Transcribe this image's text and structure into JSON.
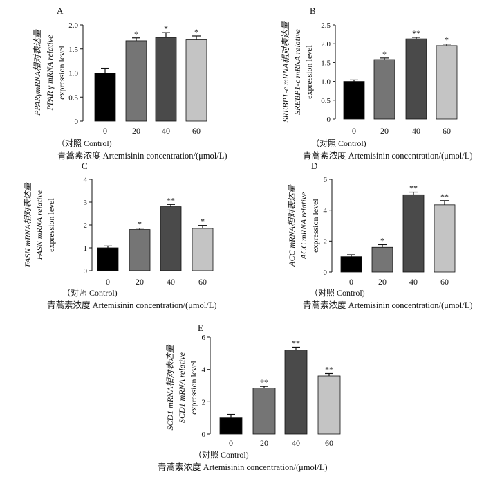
{
  "chart_data": [
    {
      "type": "bar",
      "panel_letter": "A",
      "categories": [
        "0",
        "20",
        "40",
        "60"
      ],
      "control_label": "（对照 Control)",
      "values": [
        1.0,
        1.67,
        1.74,
        1.69
      ],
      "errors": [
        0.1,
        0.06,
        0.1,
        0.08
      ],
      "significance": [
        "",
        "*",
        "*",
        "*"
      ],
      "ylim": [
        0,
        2.0
      ],
      "yticks": [
        "0",
        "0.5",
        "1.0",
        "1.5",
        "2.0"
      ],
      "ylabel_lines": [
        "PPARγmRNA相对表达量",
        "PPAR γ mRNA relative",
        "expression level"
      ],
      "xlabel": "青蒿素浓度 Artemisinin concentration/(μmol/L)",
      "colors": [
        "#000000",
        "#757575",
        "#4a4a4a",
        "#c4c4c4"
      ]
    },
    {
      "type": "bar",
      "panel_letter": "B",
      "categories": [
        "0",
        "20",
        "40",
        "60"
      ],
      "control_label": "（对照 Control)",
      "values": [
        1.0,
        1.58,
        2.13,
        1.95
      ],
      "errors": [
        0.04,
        0.04,
        0.04,
        0.04
      ],
      "significance": [
        "",
        "*",
        "**",
        "*"
      ],
      "ylim": [
        0,
        2.5
      ],
      "yticks": [
        "0",
        "0.5",
        "1.0",
        "1.5",
        "2.0",
        "2.5"
      ],
      "ylabel_lines": [
        "SREBP1-c mRNA相对表达量",
        "SREBP1-c mRNA relative",
        "expression level"
      ],
      "xlabel": "青蒿素浓度 Artemisinin concentration/(μmol/L)",
      "colors": [
        "#000000",
        "#757575",
        "#4a4a4a",
        "#c4c4c4"
      ]
    },
    {
      "type": "bar",
      "panel_letter": "C",
      "categories": [
        "0",
        "20",
        "40",
        "60"
      ],
      "control_label": "（对照 Control)",
      "values": [
        1.0,
        1.8,
        2.8,
        1.85
      ],
      "errors": [
        0.08,
        0.06,
        0.1,
        0.13
      ],
      "significance": [
        "",
        "*",
        "**",
        "*"
      ],
      "ylim": [
        0,
        4
      ],
      "yticks": [
        "0",
        "1",
        "2",
        "3",
        "4"
      ],
      "ylabel_lines": [
        "FASN mRNA相对表达量",
        "FASN mRNA relative",
        "expression level"
      ],
      "xlabel": "青蒿素浓度 Artemisinin concentration/(μmol/L)",
      "colors": [
        "#000000",
        "#757575",
        "#4a4a4a",
        "#c4c4c4"
      ]
    },
    {
      "type": "bar",
      "panel_letter": "D",
      "categories": [
        "0",
        "20",
        "40",
        "60"
      ],
      "control_label": "（对照 Control)",
      "values": [
        1.0,
        1.6,
        5.0,
        4.35
      ],
      "errors": [
        0.12,
        0.17,
        0.17,
        0.27
      ],
      "significance": [
        "",
        "*",
        "**",
        "**"
      ],
      "ylim": [
        0,
        6
      ],
      "yticks": [
        "0",
        "2",
        "4",
        "6"
      ],
      "ylabel_lines": [
        "ACC mRNA相对表达量",
        "ACC mRNA relative",
        "expression level"
      ],
      "xlabel": "青蒿素浓度 Artemisinin concentration/(μmol/L)",
      "colors": [
        "#000000",
        "#757575",
        "#4a4a4a",
        "#c4c4c4"
      ]
    },
    {
      "type": "bar",
      "panel_letter": "E",
      "categories": [
        "0",
        "20",
        "40",
        "60"
      ],
      "control_label": "（对照 Control)",
      "values": [
        1.0,
        2.85,
        5.2,
        3.6
      ],
      "errors": [
        0.22,
        0.1,
        0.18,
        0.15
      ],
      "significance": [
        "",
        "**",
        "**",
        "**"
      ],
      "ylim": [
        0,
        6
      ],
      "yticks": [
        "0",
        "2",
        "4",
        "6"
      ],
      "ylabel_lines": [
        "SCD1 mRNA相对表达量",
        "SCD1 mRNA relative",
        "expression level"
      ],
      "xlabel": "青蒿素浓度 Artemisinin concentration/(μmol/L)",
      "colors": [
        "#000000",
        "#757575",
        "#4a4a4a",
        "#c4c4c4"
      ]
    }
  ]
}
